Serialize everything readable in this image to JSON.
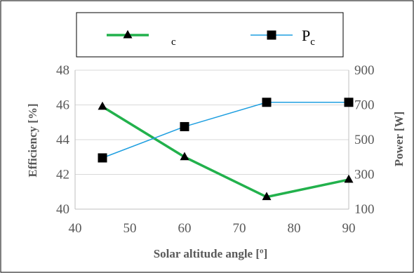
{
  "chart_data": {
    "type": "line",
    "xlabel": "Solar altitude angle [º]",
    "xlim": [
      40,
      90
    ],
    "xticks": [
      "40",
      "50",
      "60",
      "70",
      "80",
      "90"
    ],
    "y_left": {
      "label": "Efficiency [%]",
      "lim": [
        40,
        48
      ],
      "ticks": [
        "40",
        "42",
        "44",
        "46",
        "48"
      ]
    },
    "y_right": {
      "label": "Power [W]",
      "lim": [
        100,
        900
      ],
      "ticks": [
        "100",
        "300",
        "500",
        "700",
        "900"
      ]
    },
    "grid": "horizontal",
    "legend_position": "top",
    "series": [
      {
        "legend_main": "",
        "legend_sub": "c",
        "axis": "left",
        "color": "#22b14c",
        "marker": "triangle",
        "x": [
          45,
          60,
          75,
          90
        ],
        "y": [
          45.9,
          43.0,
          40.7,
          41.7
        ]
      },
      {
        "legend_main": "P",
        "legend_sub": "c",
        "axis": "right",
        "color": "#1f9fe0",
        "marker": "square",
        "x": [
          45,
          60,
          75,
          90
        ],
        "y": [
          395,
          575,
          715,
          715
        ]
      }
    ]
  }
}
